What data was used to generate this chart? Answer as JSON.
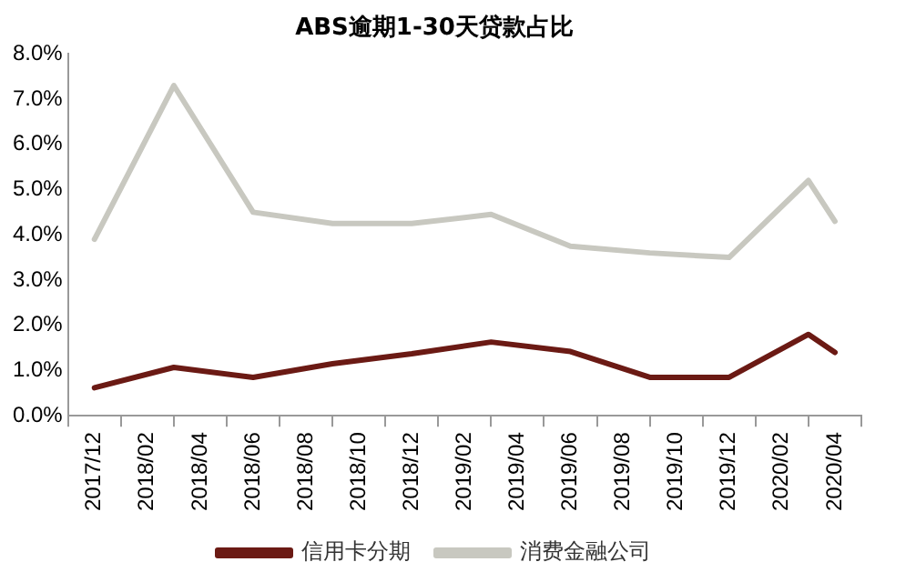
{
  "chart_data": {
    "type": "line",
    "title": "ABS逾期1-30天贷款占比",
    "x": [
      "2017-12",
      "2018-03",
      "2018-06",
      "2018-09",
      "2018-12",
      "2019-03",
      "2019-06",
      "2019-09",
      "2019-12",
      "2020-03",
      "2020-04"
    ],
    "series": [
      {
        "name": "信用卡分期",
        "color": "#6b1a14",
        "values": [
          0.62,
          1.07,
          0.85,
          1.15,
          1.37,
          1.63,
          1.42,
          0.85,
          0.85,
          1.8,
          1.4
        ]
      },
      {
        "name": "消费金融公司",
        "color": "#c8c8c0",
        "values": [
          3.9,
          7.3,
          4.5,
          4.25,
          4.25,
          4.45,
          3.75,
          3.6,
          3.5,
          5.2,
          4.3
        ]
      }
    ],
    "xlim": [
      "2017-11",
      "2020-05"
    ],
    "xticks": [
      {
        "value": "2017-12",
        "label": "2017/12"
      },
      {
        "value": "2018-02",
        "label": "2018/02"
      },
      {
        "value": "2018-04",
        "label": "2018/04"
      },
      {
        "value": "2018-06",
        "label": "2018/06"
      },
      {
        "value": "2018-08",
        "label": "2018/08"
      },
      {
        "value": "2018-10",
        "label": "2018/10"
      },
      {
        "value": "2018-12",
        "label": "2018/12"
      },
      {
        "value": "2019-02",
        "label": "2019/02"
      },
      {
        "value": "2019-04",
        "label": "2019/04"
      },
      {
        "value": "2019-06",
        "label": "2019/06"
      },
      {
        "value": "2019-08",
        "label": "2019/08"
      },
      {
        "value": "2019-10",
        "label": "2019/10"
      },
      {
        "value": "2019-12",
        "label": "2019/12"
      },
      {
        "value": "2020-02",
        "label": "2020/02"
      },
      {
        "value": "2020-04",
        "label": "2020/04"
      }
    ],
    "ylim": [
      0,
      8
    ],
    "yticks": [
      {
        "value": 0,
        "label": "0.0%"
      },
      {
        "value": 1,
        "label": "1.0%"
      },
      {
        "value": 2,
        "label": "2.0%"
      },
      {
        "value": 3,
        "label": "3.0%"
      },
      {
        "value": 4,
        "label": "4.0%"
      },
      {
        "value": 5,
        "label": "5.0%"
      },
      {
        "value": 6,
        "label": "6.0%"
      },
      {
        "value": 7,
        "label": "7.0%"
      },
      {
        "value": 8,
        "label": "8.0%"
      }
    ],
    "grid": false,
    "legend": "bottom",
    "marker": "none",
    "line_style": "solid"
  }
}
